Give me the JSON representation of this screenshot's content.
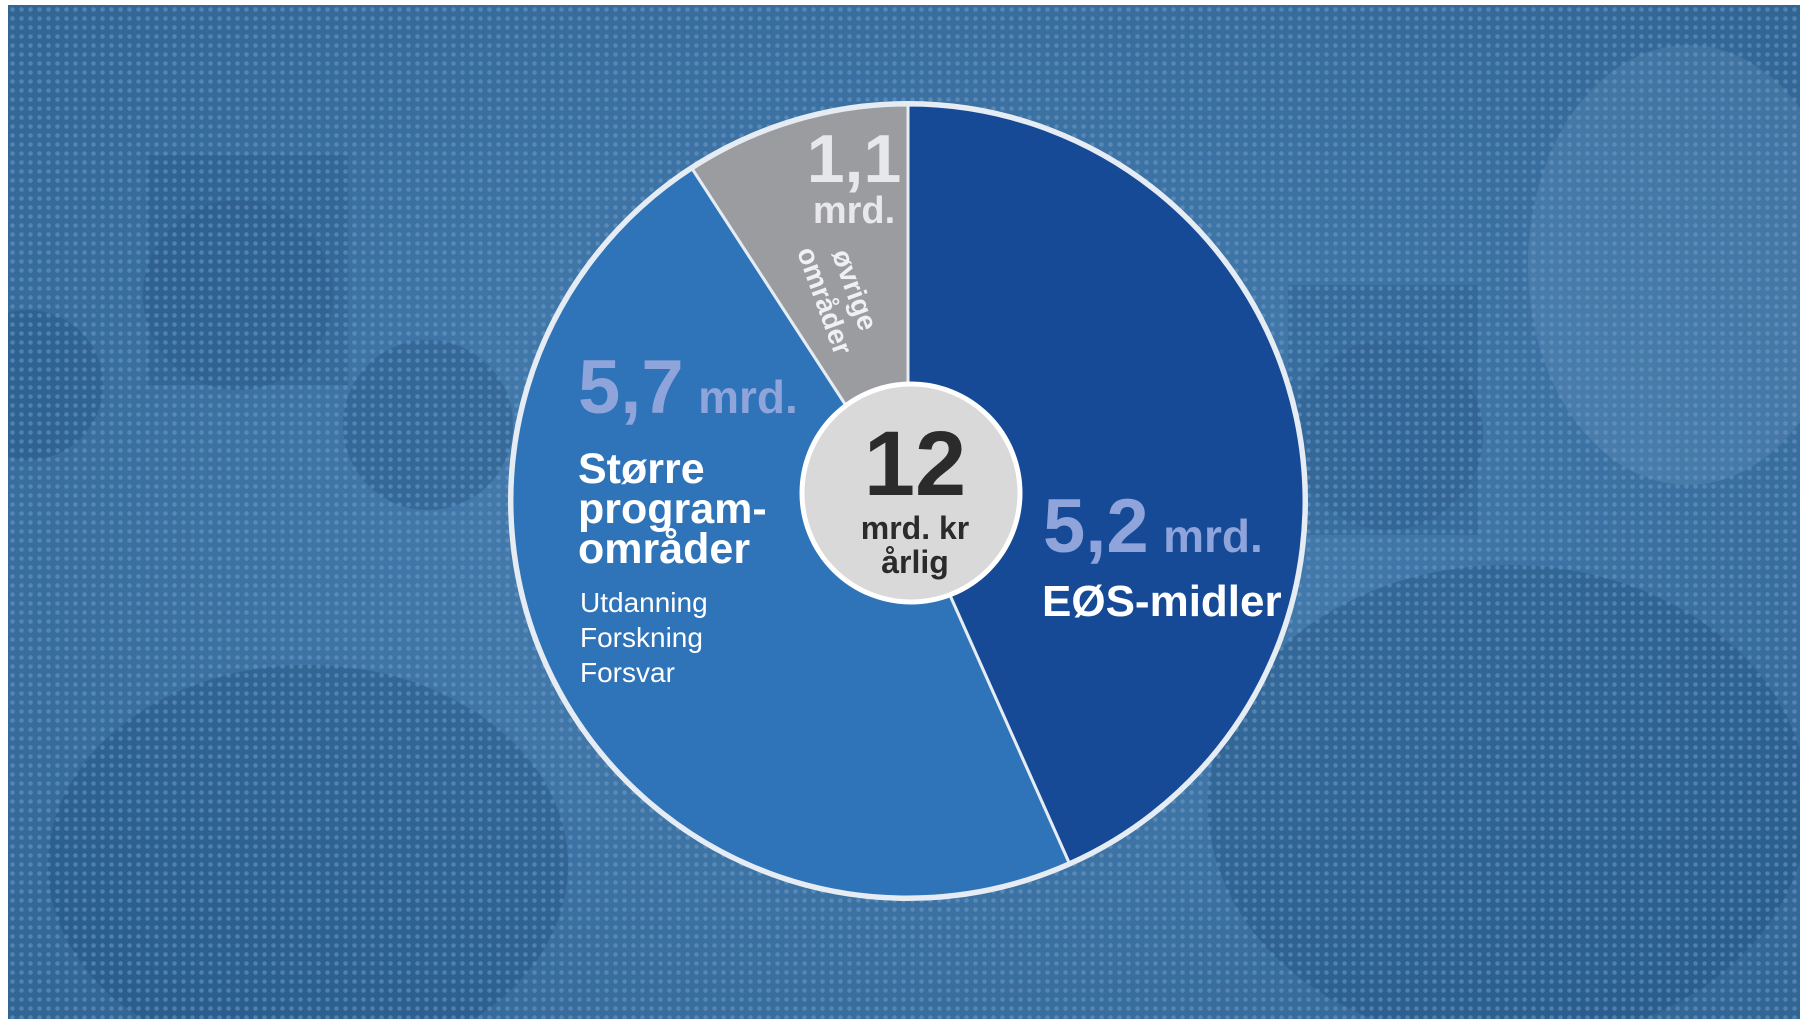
{
  "colors": {
    "background": "#3f73a6",
    "slice_eos": "#164a97",
    "slice_programs": "#2f73b8",
    "slice_other": "#9a9ca0",
    "accent_value": "#8ea4db",
    "center_disc": "#d9d9d9"
  },
  "chart_data": {
    "type": "pie",
    "categories": [
      "EØS-midler",
      "Større program-områder",
      "øvrige områder"
    ],
    "values": [
      5.2,
      5.7,
      1.1
    ],
    "unit": "mrd.",
    "total": 12,
    "total_label": "mrd. kr årlig"
  },
  "labels": {
    "eos": {
      "value": "5,2",
      "unit": "mrd.",
      "name": "EØS-midler"
    },
    "programs": {
      "value": "5,7",
      "unit": "mrd.",
      "name_line1": "Større",
      "name_line2": "program-",
      "name_line3": "områder",
      "sub1": "Utdanning",
      "sub2": "Forskning",
      "sub3": "Forsvar"
    },
    "other": {
      "value": "1,1",
      "unit": "mrd.",
      "name_line1": "øvrige",
      "name_line2": "områder"
    }
  },
  "center": {
    "number": "12",
    "line1": "mrd. kr",
    "line2": "årlig"
  }
}
